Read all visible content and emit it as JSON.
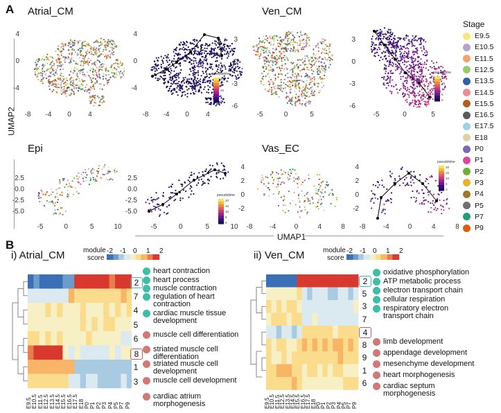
{
  "panel_a": {
    "letter": "A",
    "titles": {
      "atrial": "Atrial_CM",
      "ven": "Ven_CM",
      "epi": "Epi",
      "vas": "Vas_EC"
    },
    "axis": {
      "y_label": "UMAP2",
      "x_label": "UMAP1"
    },
    "pseudotime_label": "pseudotime",
    "ticks": {
      "atrial_y": [
        "4",
        "0",
        "-4"
      ],
      "atrial_x": [
        "-8",
        "-4",
        "0",
        "4"
      ],
      "atrial_pt_y": [
        "4",
        "0",
        "-4"
      ],
      "atrial_pt_x": [
        "-8",
        "-4",
        "0",
        "4"
      ],
      "ven_y": [
        "3",
        "0",
        "-3",
        "-6"
      ],
      "ven_x": [
        "-5",
        "0",
        "5"
      ],
      "ven_pt_y": [
        "3",
        "0",
        "-3",
        "-6"
      ],
      "ven_pt_x": [
        "-5",
        "0",
        "5"
      ],
      "epi_y": [
        "2.5",
        "0.0",
        "-2.5",
        "-5.0"
      ],
      "epi_x": [
        "-5",
        "0",
        "5",
        "10"
      ],
      "epi_pt_y": [
        "2.5",
        "0.0",
        "-2.5",
        "-5.0"
      ],
      "epi_pt_x": [
        "-5",
        "0",
        "5",
        "10"
      ],
      "vas_y": [
        "4",
        "2",
        "0",
        "-2"
      ],
      "vas_x": [
        "-8",
        "-4",
        "0",
        "4",
        "8"
      ],
      "vas_pt_y": [
        "4",
        "2",
        "0",
        "-2"
      ],
      "vas_pt_x": [
        "-8",
        "-4",
        "0",
        "4",
        "8"
      ],
      "cbar_atrial": [
        "20",
        "15",
        "10",
        "5",
        "0"
      ],
      "cbar_ven": [
        "20",
        "15",
        "10",
        "5",
        "0"
      ],
      "cbar_epi": [
        "20",
        "15",
        "10",
        "5",
        "0"
      ],
      "cbar_vas": [
        "20",
        "15",
        "10",
        "5",
        "0"
      ]
    },
    "legend": {
      "title": "Stage",
      "items": [
        {
          "label": "E9.5",
          "color": "#f6e97a"
        },
        {
          "label": "E10.5",
          "color": "#b3a3cf"
        },
        {
          "label": "E11.5",
          "color": "#f2a26e"
        },
        {
          "label": "E12.5",
          "color": "#9acb6c"
        },
        {
          "label": "E13.5",
          "color": "#2e63a8"
        },
        {
          "label": "E14.5",
          "color": "#ee8c93"
        },
        {
          "label": "E15.5",
          "color": "#b35c1e"
        },
        {
          "label": "E16.5",
          "color": "#5b5b5b"
        },
        {
          "label": "E17.5",
          "color": "#9fd1e4"
        },
        {
          "label": "E18",
          "color": "#dcd2a8"
        },
        {
          "label": "P0",
          "color": "#7b69b3"
        },
        {
          "label": "P1",
          "color": "#e0449b"
        },
        {
          "label": "P2",
          "color": "#70ad34"
        },
        {
          "label": "P3",
          "color": "#e8b12a"
        },
        {
          "label": "P4",
          "color": "#9c7a2a"
        },
        {
          "label": "P5",
          "color": "#707070"
        },
        {
          "label": "P7",
          "color": "#1f9e77"
        },
        {
          "label": "P9",
          "color": "#d95f0e"
        }
      ]
    }
  },
  "panel_b": {
    "letter": "B",
    "scale_label_line1": "module",
    "scale_label_line2": "score",
    "scale_ticks": [
      "-2",
      "-1",
      "0",
      "1",
      "2"
    ],
    "stages": [
      "E9.5",
      "E10.5",
      "E11.5",
      "E12.5",
      "E13.5",
      "E14.5",
      "E15.5",
      "E16.5",
      "E17.5",
      "E18",
      "P0",
      "P1",
      "P2",
      "P3",
      "P4",
      "P5",
      "P7",
      "P9"
    ],
    "atrial": {
      "title": "i) Atrial_CM",
      "clusters": [
        "2",
        "7",
        "4",
        "5",
        "6",
        "8",
        "1",
        "3"
      ],
      "terms": [
        {
          "text": "heart contraction",
          "color": "teal"
        },
        {
          "text": "heart process",
          "color": "teal"
        },
        {
          "text": "muscle contraction",
          "color": "teal"
        },
        {
          "text": "regulation of heart contraction",
          "color": "teal"
        },
        {
          "text": "cardiac muscle tissue development",
          "color": "teal"
        },
        {
          "text": "muscle cell differentiation",
          "color": "pink"
        },
        {
          "text": "striated muscle cell differentiation",
          "color": "pink"
        },
        {
          "text": "striated muscle cell development",
          "color": "pink"
        },
        {
          "text": "muscle cell development",
          "color": "pink"
        },
        {
          "text": "cardiac atrium morphogenesis",
          "color": "pink"
        }
      ]
    },
    "ven": {
      "title": "ii) Ven_CM",
      "clusters": [
        "2",
        "5",
        "3",
        "7",
        "4",
        "8",
        "9",
        "1",
        "6"
      ],
      "terms": [
        {
          "text": "oxidative phosphorylation",
          "color": "teal"
        },
        {
          "text": "ATP metabolic process",
          "color": "teal"
        },
        {
          "text": "electron transport chain",
          "color": "teal"
        },
        {
          "text": "cellular respiration",
          "color": "teal"
        },
        {
          "text": "respiratory electron transport chain",
          "color": "teal"
        },
        {
          "text": "limb development",
          "color": "pink"
        },
        {
          "text": "appendage development",
          "color": "pink"
        },
        {
          "text": "mesenchyme development",
          "color": "pink"
        },
        {
          "text": "heart morphogenesis",
          "color": "pink"
        },
        {
          "text": "cardiac septum morphogenesis",
          "color": "pink"
        }
      ]
    }
  }
}
